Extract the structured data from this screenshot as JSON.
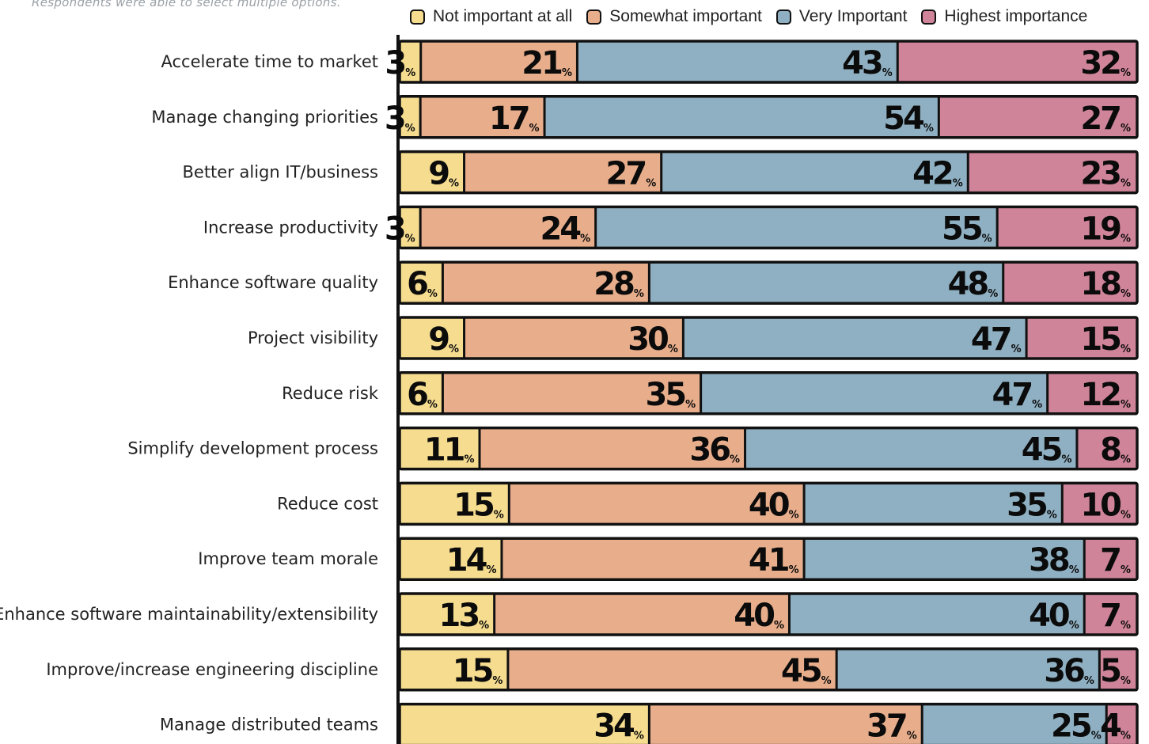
{
  "note": "Respondents were able to select multiple options.",
  "legend": [
    {
      "name": "Not important at all",
      "color": "#f5dc8f"
    },
    {
      "name": "Somewhat important",
      "color": "#e8ae8c"
    },
    {
      "name": "Very Important",
      "color": "#8fb0c2"
    },
    {
      "name": "Highest importance",
      "color": "#cf8499"
    }
  ],
  "chart_data": {
    "type": "bar",
    "orientation": "horizontal",
    "stacked": true,
    "value_suffix": "%",
    "categories": [
      "Accelerate time to market",
      "Manage changing priorities",
      "Better align IT/business",
      "Increase productivity",
      "Enhance software quality",
      "Project visibility",
      "Reduce risk",
      "Simplify development process",
      "Reduce cost",
      "Improve team morale",
      "Enhance software maintainability/extensibility",
      "Improve/increase engineering discipline",
      "Manage distributed teams"
    ],
    "series": [
      {
        "name": "Not important at all",
        "color": "#f5dc8f",
        "values": [
          3,
          3,
          9,
          3,
          6,
          9,
          6,
          11,
          15,
          14,
          13,
          15,
          34
        ]
      },
      {
        "name": "Somewhat important",
        "color": "#e8ae8c",
        "values": [
          21,
          17,
          27,
          24,
          28,
          30,
          35,
          36,
          40,
          41,
          40,
          45,
          37
        ]
      },
      {
        "name": "Very Important",
        "color": "#8fb0c2",
        "values": [
          43,
          54,
          42,
          55,
          48,
          47,
          47,
          45,
          35,
          38,
          40,
          36,
          25
        ]
      },
      {
        "name": "Highest importance",
        "color": "#cf8499",
        "values": [
          32,
          27,
          23,
          19,
          18,
          15,
          12,
          8,
          10,
          7,
          7,
          5,
          4
        ]
      }
    ],
    "legend_position": "top",
    "grid": false
  }
}
